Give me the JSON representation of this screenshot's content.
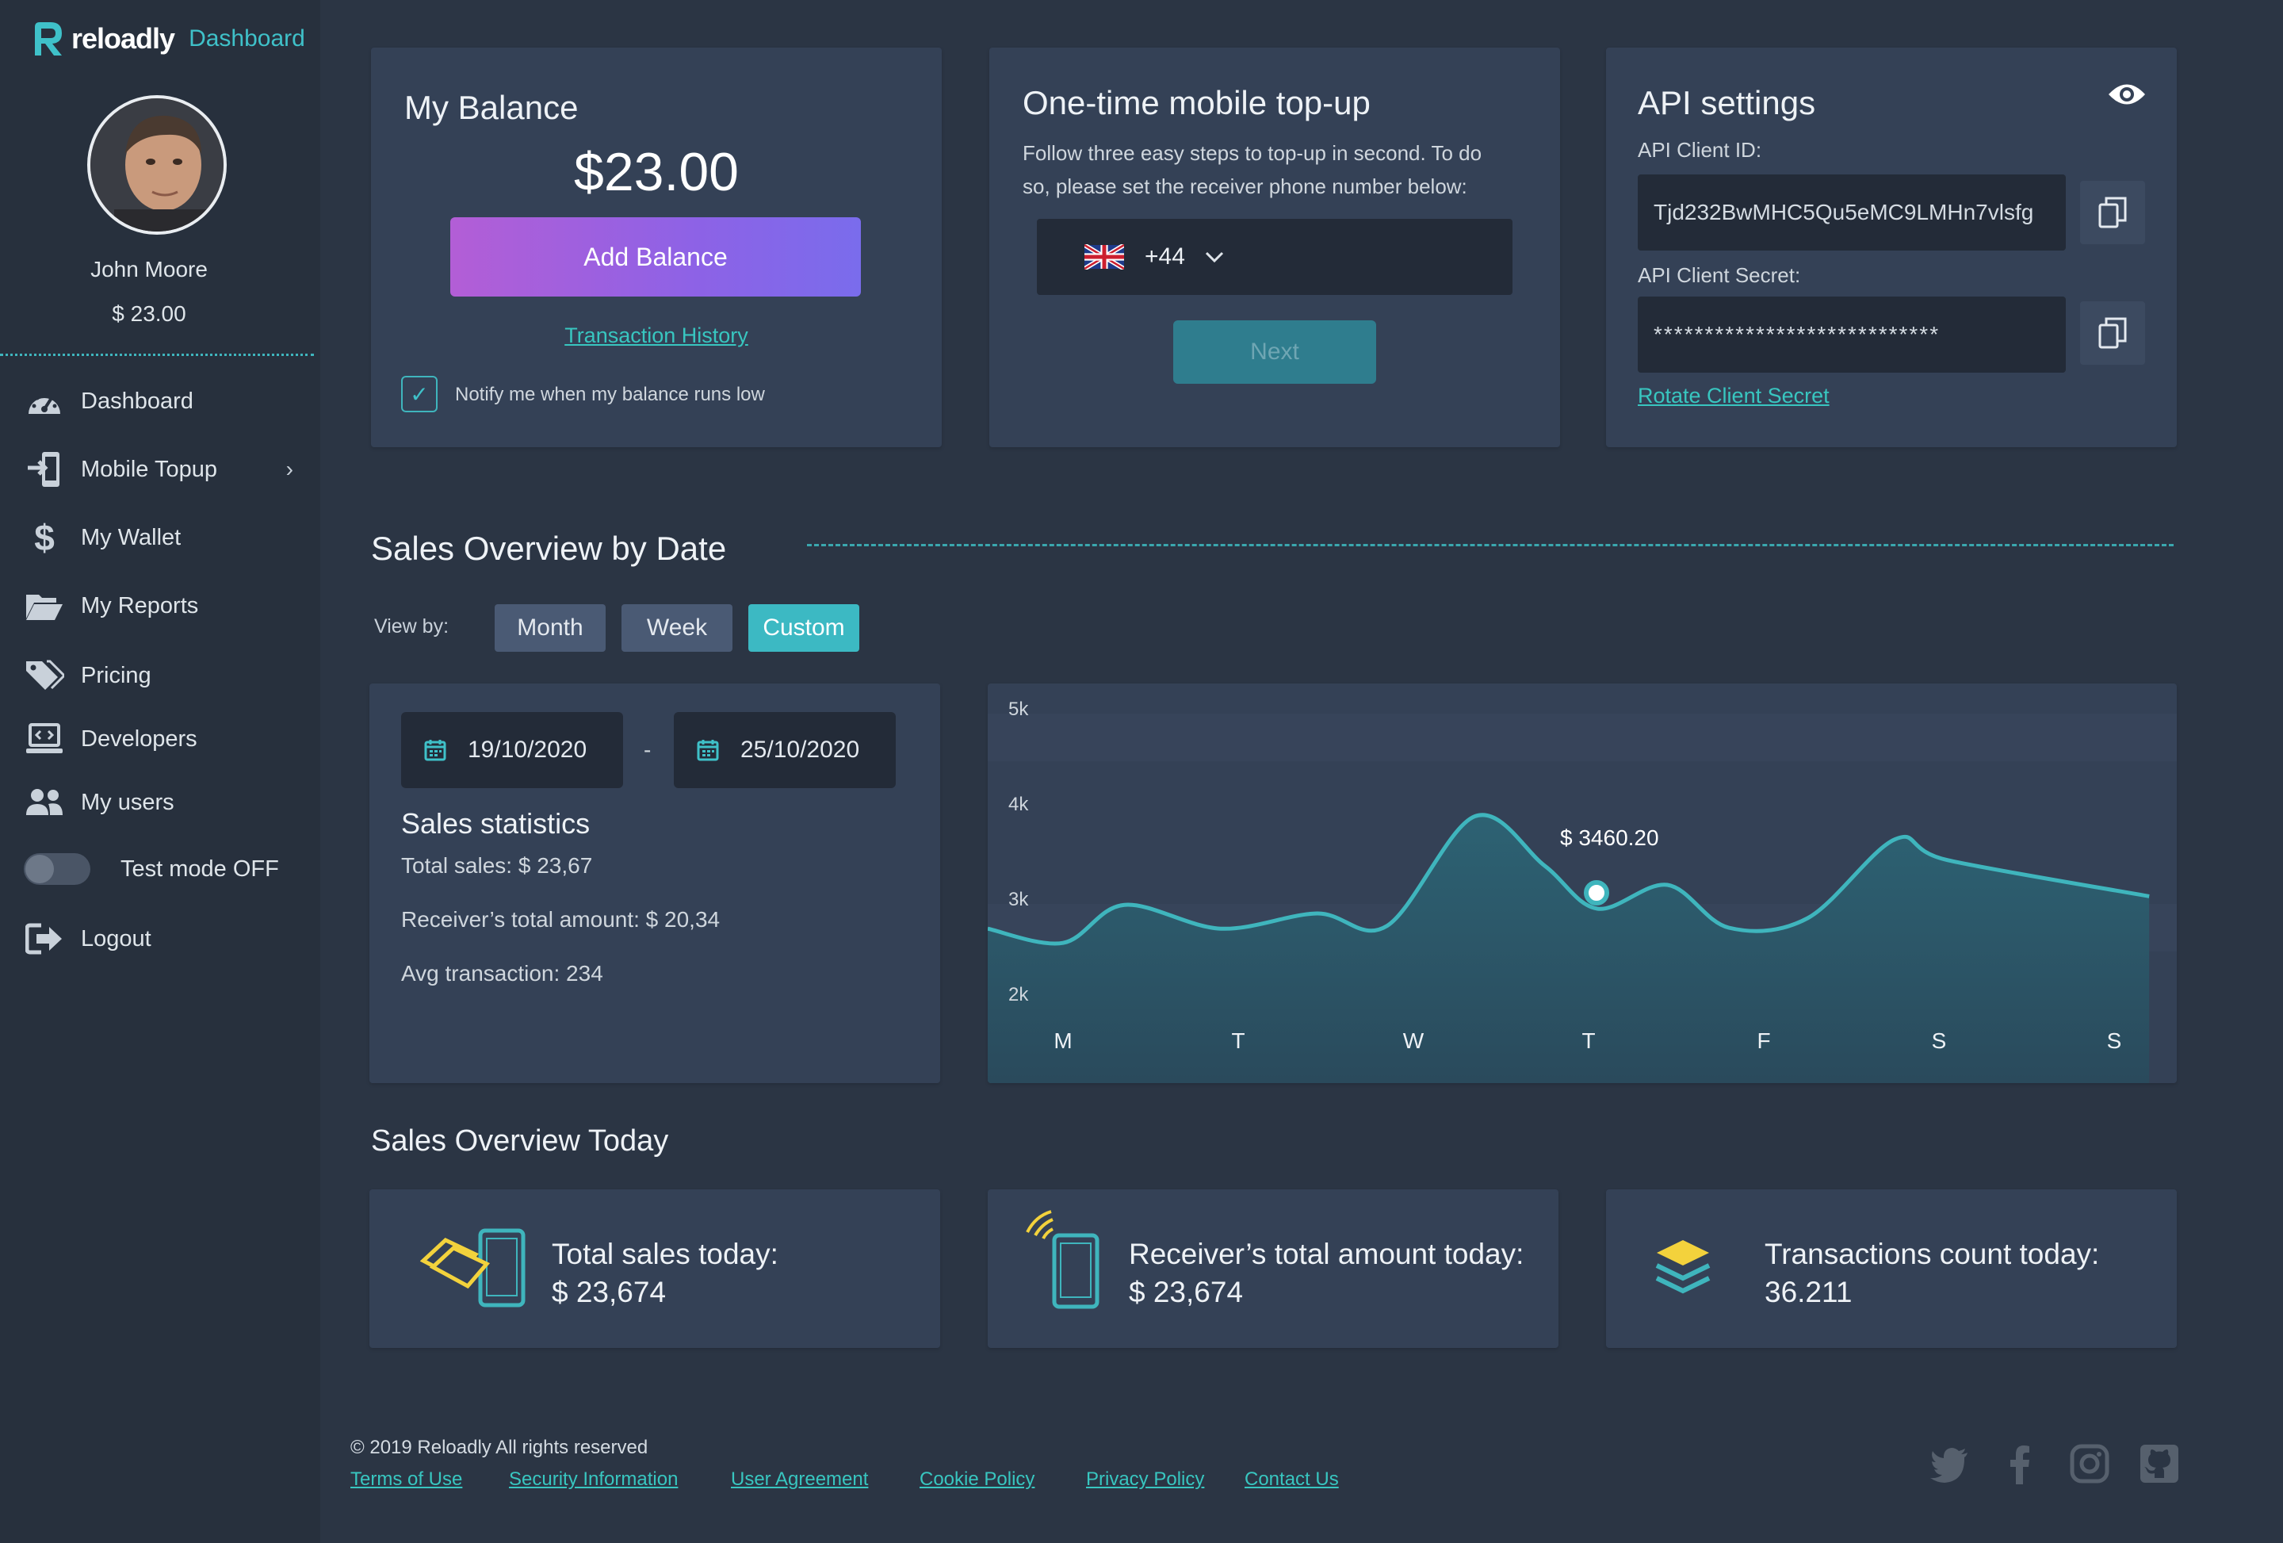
{
  "brand": {
    "name": "reloadly",
    "section": "Dashboard"
  },
  "user": {
    "name": "John Moore",
    "balance": "$ 23.00"
  },
  "nav": {
    "items": [
      {
        "label": "Dashboard",
        "icon": "speedometer-icon"
      },
      {
        "label": "Mobile Topup",
        "icon": "phone-enter-icon"
      },
      {
        "label": "My Wallet",
        "icon": "dollar-icon"
      },
      {
        "label": "My Reports",
        "icon": "folder-open-icon"
      },
      {
        "label": "Pricing",
        "icon": "tags-icon"
      },
      {
        "label": "Developers",
        "icon": "laptop-code-icon"
      },
      {
        "label": "My users",
        "icon": "users-icon"
      },
      {
        "label": "Test mode OFF",
        "icon": "toggle-icon"
      },
      {
        "label": "Logout",
        "icon": "logout-icon"
      }
    ],
    "chevron": "›"
  },
  "balance_card": {
    "title": "My Balance",
    "amount": "$23.00",
    "add_button": "Add Balance",
    "history_link": "Transaction History",
    "notify_label": "Notify me when my balance runs low",
    "notify_checked": true
  },
  "topup_card": {
    "title": "One-time mobile top-up",
    "description_line1": "Follow three easy steps to top-up in second. To do",
    "description_line2": "so, please set the receiver phone number below:",
    "country_code": "+44",
    "next_button": "Next"
  },
  "api_card": {
    "title": "API settings",
    "client_id_label": "API Client ID:",
    "client_id_value": "Tjd232BwMHC5Qu5eMC9LMHn7vlsfg",
    "client_secret_label": "API Client Secret:",
    "client_secret_value": "****************************",
    "rotate_link": "Rotate Client Secret"
  },
  "sales_overview": {
    "title": "Sales Overview by Date",
    "view_by_label": "View by:",
    "tabs": [
      {
        "label": "Month",
        "active": false
      },
      {
        "label": "Week",
        "active": false
      },
      {
        "label": "Custom",
        "active": true
      }
    ],
    "date_from": "19/10/2020",
    "date_separator": "-",
    "date_to": "25/10/2020",
    "stats_title": "Sales statistics",
    "total_sales": "Total sales: $ 23,67",
    "receiver_total": "Receiver’s total amount: $ 20,34",
    "avg_transaction": "Avg transaction: 234"
  },
  "chart_data": {
    "type": "area",
    "categories": [
      "M",
      "T",
      "W",
      "T",
      "F",
      "S",
      "S"
    ],
    "y_tick_labels": [
      "5k",
      "4k",
      "3k",
      "2k"
    ],
    "ylim": [
      2000,
      5000
    ],
    "highlight": {
      "label": "$ 3460.20",
      "value": 3460.2
    },
    "line_color": "#3fb5bd",
    "fill_color": "#2a5b6b",
    "samples": [
      [
        0.0,
        2590
      ],
      [
        0.35,
        2990
      ],
      [
        0.9,
        2740
      ],
      [
        1.45,
        2900
      ],
      [
        1.85,
        2770
      ],
      [
        2.35,
        3920
      ],
      [
        2.75,
        3400
      ],
      [
        3.05,
        2950
      ],
      [
        3.45,
        3200
      ],
      [
        3.8,
        2750
      ],
      [
        4.25,
        2850
      ],
      [
        4.75,
        3680
      ],
      [
        5.05,
        3460
      ]
    ],
    "xlabel": "",
    "ylabel": ""
  },
  "sales_today": {
    "title": "Sales Overview Today",
    "cards": [
      {
        "title": "Total sales today:",
        "value": "$ 23,674",
        "icon": "phone-money-icon"
      },
      {
        "title": "Receiver’s total amount today:",
        "value": "$ 23,674",
        "icon": "phone-signal-icon"
      },
      {
        "title": "Transactions count today:",
        "value": "36.211",
        "icon": "layers-icon"
      }
    ]
  },
  "footer": {
    "copyright": "© 2019 Reloadly All rights reserved",
    "links": [
      "Terms of Use",
      "Security Information",
      "User Agreement",
      "Cookie Policy",
      "Privacy Policy",
      "Contact Us"
    ],
    "social": [
      "twitter-icon",
      "facebook-icon",
      "instagram-icon",
      "github-icon"
    ]
  }
}
